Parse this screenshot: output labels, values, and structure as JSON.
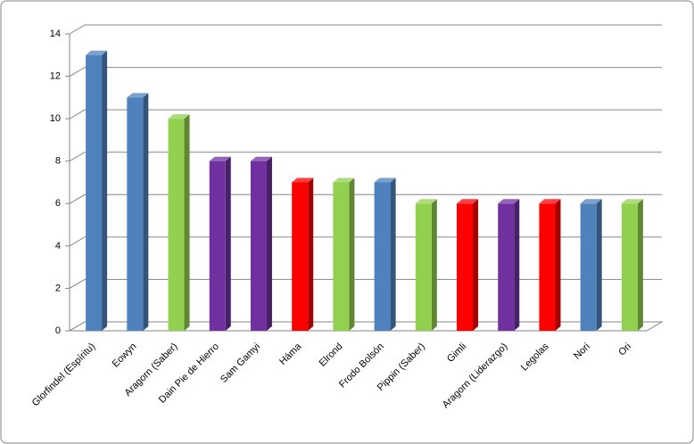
{
  "chart_data": {
    "type": "bar3d",
    "categories": [
      "Glorfindel (Espíritu)",
      "Eowyn",
      "Aragorn (Saber)",
      "Dain Pie de Hierro",
      "Sam Gamyi",
      "Háma",
      "Elrond",
      "Frodo Bolsón",
      "Pippin (Saber)",
      "Gimli",
      "Aragorn (Liderazgo)",
      "Legolas",
      "Nori",
      "Ori"
    ],
    "values": [
      13,
      11,
      10,
      8,
      8,
      7,
      7,
      7,
      6,
      6,
      6,
      6,
      6,
      6
    ],
    "colors": [
      "#4f81bd",
      "#4f81bd",
      "#92d050",
      "#7030a0",
      "#7030a0",
      "#ff0000",
      "#92d050",
      "#4f81bd",
      "#92d050",
      "#ff0000",
      "#7030a0",
      "#ff0000",
      "#4f81bd",
      "#92d050"
    ],
    "ylim": [
      0,
      14
    ],
    "yticks": [
      0,
      2,
      4,
      6,
      8,
      10,
      12,
      14
    ],
    "grid": true
  }
}
